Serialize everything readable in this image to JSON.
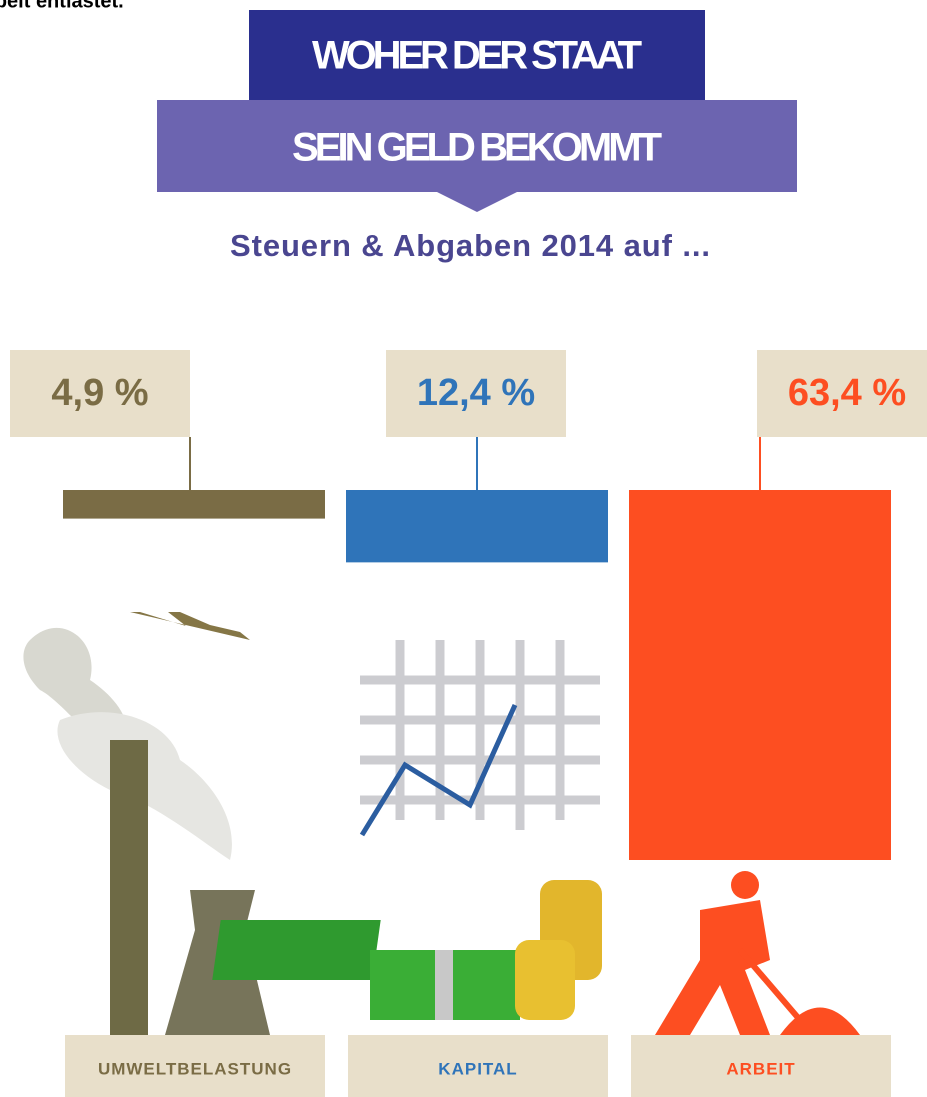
{
  "chart_data": {
    "type": "bar",
    "caption": "r Arbeit entlastet.",
    "title": [
      "WOHER DER STAAT",
      "SEIN GELD BEKOMMT"
    ],
    "subtitle": "Steuern & Abgaben 2014 auf ...",
    "categories": [
      "UMWELTBELASTUNG",
      "KAPITAL",
      "ARBEIT"
    ],
    "values": [
      4.9,
      12.4,
      63.4
    ],
    "value_labels": [
      "4,9 %",
      "12,4 %",
      "63,4 %"
    ],
    "colors": [
      "#7a6c45",
      "#2f74b9",
      "#fd4e21"
    ]
  }
}
